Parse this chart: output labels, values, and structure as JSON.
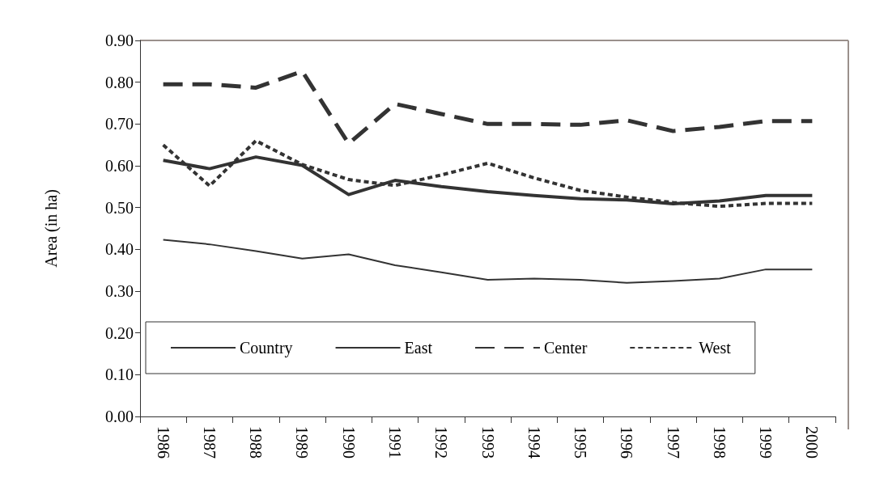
{
  "chart_data": {
    "type": "line",
    "ylabel": "Area (in ha)",
    "categories": [
      "1986",
      "1987",
      "1988",
      "1989",
      "1990",
      "1991",
      "1992",
      "1993",
      "1994",
      "1995",
      "1996",
      "1997",
      "1998",
      "1999",
      "2000"
    ],
    "series": [
      {
        "name": "Country",
        "color": "#333333",
        "line_style": "solid",
        "values": [
          0.613,
          0.593,
          0.621,
          0.601,
          0.531,
          0.565,
          0.55,
          0.538,
          0.529,
          0.521,
          0.518,
          0.509,
          0.516,
          0.529,
          0.529
        ]
      },
      {
        "name": "East",
        "color": "#333333",
        "line_style": "solid",
        "values": [
          0.423,
          0.412,
          0.396,
          0.378,
          0.388,
          0.362,
          0.345,
          0.327,
          0.33,
          0.327,
          0.32,
          0.324,
          0.33,
          0.352,
          0.352
        ]
      },
      {
        "name": "Center",
        "color": "#333333",
        "line_style": "dashed",
        "values": [
          0.795,
          0.795,
          0.787,
          0.826,
          0.653,
          0.748,
          0.724,
          0.7,
          0.7,
          0.698,
          0.709,
          0.683,
          0.693,
          0.707,
          0.707
        ]
      },
      {
        "name": "West",
        "color": "#333333",
        "line_style": "dotted",
        "values": [
          0.65,
          0.552,
          0.66,
          0.603,
          0.567,
          0.553,
          0.578,
          0.606,
          0.571,
          0.541,
          0.525,
          0.512,
          0.503,
          0.51,
          0.51
        ]
      }
    ],
    "ylim": [
      0,
      0.9
    ],
    "yticks": [
      {
        "value": 0,
        "label": "0.00"
      },
      {
        "value": 0.1,
        "label": "0.10"
      },
      {
        "value": 0.2,
        "label": "0.20"
      },
      {
        "value": 0.3,
        "label": "0.30"
      },
      {
        "value": 0.4,
        "label": "0.40"
      },
      {
        "value": 0.5,
        "label": "0.50"
      },
      {
        "value": 0.6,
        "label": "0.60"
      },
      {
        "value": 0.7,
        "label": "0.70"
      },
      {
        "value": 0.8,
        "label": "0.80"
      },
      {
        "value": 0.9,
        "label": "0.90"
      }
    ],
    "grid": false,
    "legend": "bottom",
    "marker": "none"
  }
}
